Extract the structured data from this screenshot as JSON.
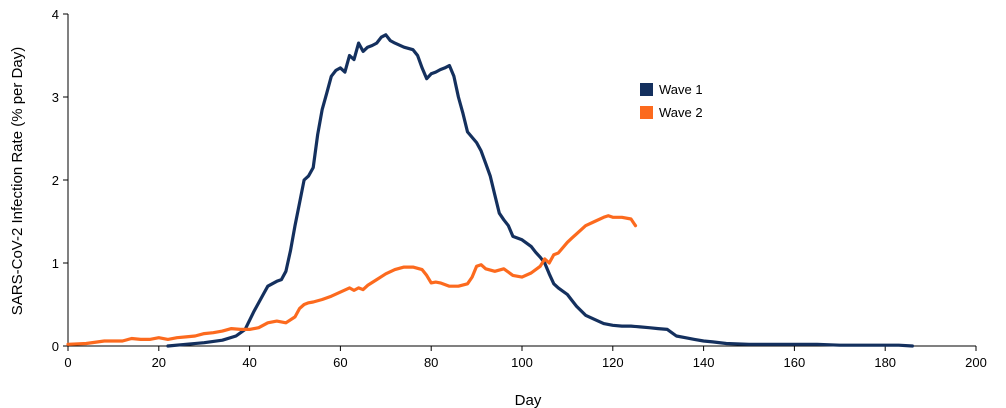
{
  "chart_data": {
    "type": "line",
    "title": "",
    "xlabel": "Day",
    "ylabel": "SARS-CoV-2 Infection Rate (% per Day)",
    "xlim": [
      0,
      200
    ],
    "ylim": [
      0,
      4
    ],
    "x_ticks": [
      0,
      20,
      40,
      60,
      80,
      100,
      120,
      140,
      160,
      180,
      200
    ],
    "y_ticks": [
      0,
      1,
      2,
      3,
      4
    ],
    "grid": false,
    "legend_position": "top-right",
    "series": [
      {
        "name": "Wave 1",
        "color": "#14305e",
        "x": [
          22,
          26,
          30,
          34,
          37,
          39,
          41,
          43,
          44,
          46,
          47,
          48,
          49,
          50,
          51,
          52,
          53,
          54,
          55,
          56,
          57,
          58,
          59,
          60,
          61,
          62,
          63,
          64,
          65,
          66,
          67,
          68,
          69,
          70,
          71,
          72,
          74,
          76,
          77,
          78,
          79,
          80,
          81,
          82,
          83,
          84,
          85,
          86,
          87,
          88,
          90,
          91,
          92,
          93,
          94,
          95,
          96,
          97,
          98,
          100,
          102,
          103,
          104,
          105,
          106,
          107,
          108,
          110,
          111,
          112,
          114,
          116,
          118,
          120,
          122,
          124,
          126,
          128,
          130,
          132,
          134,
          136,
          138,
          140,
          142,
          145,
          150,
          155,
          160,
          165,
          170,
          175,
          180,
          183,
          186
        ],
        "y": [
          0.0,
          0.02,
          0.04,
          0.07,
          0.12,
          0.2,
          0.42,
          0.62,
          0.72,
          0.78,
          0.8,
          0.9,
          1.15,
          1.45,
          1.72,
          2.0,
          2.05,
          2.15,
          2.55,
          2.85,
          3.05,
          3.25,
          3.32,
          3.35,
          3.3,
          3.5,
          3.45,
          3.65,
          3.55,
          3.6,
          3.62,
          3.65,
          3.72,
          3.75,
          3.68,
          3.65,
          3.6,
          3.57,
          3.5,
          3.35,
          3.22,
          3.28,
          3.3,
          3.33,
          3.35,
          3.38,
          3.25,
          3.0,
          2.8,
          2.58,
          2.45,
          2.35,
          2.2,
          2.05,
          1.82,
          1.6,
          1.52,
          1.45,
          1.32,
          1.28,
          1.2,
          1.13,
          1.07,
          1.0,
          0.87,
          0.75,
          0.7,
          0.62,
          0.55,
          0.48,
          0.37,
          0.32,
          0.27,
          0.25,
          0.24,
          0.24,
          0.23,
          0.22,
          0.21,
          0.2,
          0.12,
          0.1,
          0.08,
          0.06,
          0.05,
          0.03,
          0.02,
          0.02,
          0.02,
          0.02,
          0.01,
          0.01,
          0.01,
          0.01,
          0.0
        ]
      },
      {
        "name": "Wave 2",
        "color": "#fc6a1e",
        "x": [
          0,
          4,
          8,
          12,
          14,
          16,
          18,
          20,
          22,
          24,
          26,
          28,
          30,
          32,
          34,
          36,
          38,
          40,
          42,
          44,
          46,
          48,
          50,
          51,
          52,
          53,
          54,
          56,
          58,
          60,
          62,
          63,
          64,
          65,
          66,
          68,
          70,
          72,
          74,
          76,
          78,
          79,
          80,
          81,
          82,
          84,
          86,
          88,
          89,
          90,
          91,
          92,
          94,
          96,
          98,
          100,
          102,
          104,
          105,
          106,
          107,
          108,
          110,
          111,
          112,
          114,
          116,
          118,
          119,
          120,
          122,
          124,
          125
        ],
        "y": [
          0.02,
          0.03,
          0.06,
          0.06,
          0.09,
          0.08,
          0.08,
          0.1,
          0.08,
          0.1,
          0.11,
          0.12,
          0.15,
          0.16,
          0.18,
          0.21,
          0.2,
          0.2,
          0.22,
          0.28,
          0.3,
          0.28,
          0.35,
          0.45,
          0.5,
          0.52,
          0.53,
          0.56,
          0.6,
          0.65,
          0.7,
          0.67,
          0.7,
          0.68,
          0.73,
          0.8,
          0.87,
          0.92,
          0.95,
          0.95,
          0.92,
          0.85,
          0.76,
          0.77,
          0.76,
          0.72,
          0.72,
          0.75,
          0.83,
          0.96,
          0.98,
          0.93,
          0.9,
          0.93,
          0.85,
          0.83,
          0.88,
          0.96,
          1.05,
          1.0,
          1.1,
          1.12,
          1.25,
          1.3,
          1.35,
          1.45,
          1.5,
          1.55,
          1.57,
          1.55,
          1.55,
          1.53,
          1.45
        ]
      }
    ]
  }
}
